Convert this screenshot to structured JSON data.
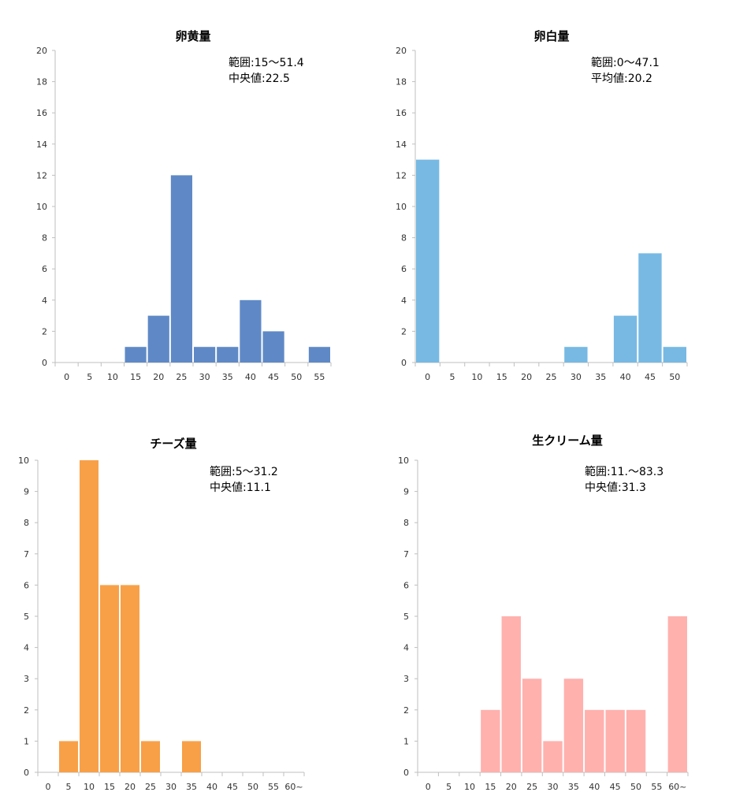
{
  "chart_data": [
    {
      "type": "bar",
      "title": "卵黄量",
      "categories": [
        "0",
        "5",
        "10",
        "15",
        "20",
        "25",
        "30",
        "35",
        "40",
        "45",
        "50",
        "55"
      ],
      "values": [
        0,
        0,
        0,
        1,
        3,
        12,
        1,
        1,
        4,
        2,
        0,
        1
      ],
      "ylim": [
        0,
        20
      ],
      "yticks": [
        "0",
        "2",
        "4",
        "6",
        "8",
        "10",
        "12",
        "14",
        "16",
        "18",
        "20"
      ],
      "color": "#5f89c6",
      "annotations": [
        "範囲:15～51.4",
        "中央値:22.5"
      ],
      "grid": false,
      "legend": "none"
    },
    {
      "type": "bar",
      "title": "卵白量",
      "categories": [
        "0",
        "5",
        "10",
        "15",
        "20",
        "25",
        "30",
        "35",
        "40",
        "45",
        "50"
      ],
      "values": [
        13,
        0,
        0,
        0,
        0,
        0,
        1,
        0,
        3,
        7,
        1
      ],
      "ylim": [
        0,
        20
      ],
      "yticks": [
        "0",
        "2",
        "4",
        "6",
        "8",
        "10",
        "12",
        "14",
        "16",
        "18",
        "20"
      ],
      "color": "#77b9e3",
      "annotations": [
        "範囲:0～47.1",
        "平均値:20.2"
      ],
      "grid": false,
      "legend": "none"
    },
    {
      "type": "bar",
      "title": "チーズ量",
      "categories": [
        "0",
        "5",
        "10",
        "15",
        "20",
        "25",
        "30",
        "35",
        "40",
        "45",
        "50",
        "55",
        "60~"
      ],
      "values": [
        0,
        1,
        10,
        6,
        6,
        1,
        0,
        1,
        0,
        0,
        0,
        0,
        0
      ],
      "ylim": [
        0,
        10
      ],
      "yticks": [
        "0",
        "1",
        "2",
        "3",
        "4",
        "5",
        "6",
        "7",
        "8",
        "9",
        "10"
      ],
      "color": "#f8a047",
      "annotations": [
        "範囲:5～31.2",
        "中央値:11.1"
      ],
      "grid": false,
      "legend": "none"
    },
    {
      "type": "bar",
      "title": "生クリーム量",
      "categories": [
        "0",
        "5",
        "10",
        "15",
        "20",
        "25",
        "30",
        "35",
        "40",
        "45",
        "50",
        "55",
        "60~"
      ],
      "values": [
        0,
        0,
        0,
        2,
        5,
        3,
        1,
        3,
        2,
        2,
        2,
        0,
        5
      ],
      "ylim": [
        0,
        10
      ],
      "yticks": [
        "0",
        "1",
        "2",
        "3",
        "4",
        "5",
        "6",
        "7",
        "8",
        "9",
        "10"
      ],
      "color": "#ffb1ae",
      "annotations": [
        "範囲:11.～83.3",
        "中央値:31.3"
      ],
      "grid": false,
      "legend": "none"
    }
  ]
}
